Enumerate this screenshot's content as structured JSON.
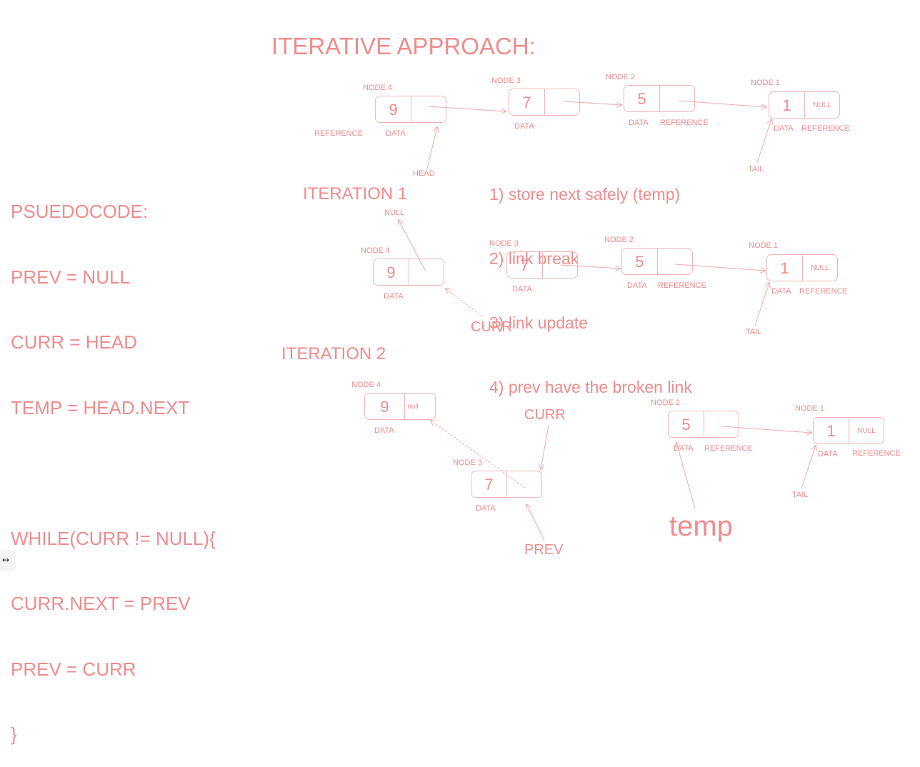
{
  "title": "ITERATIVE APPROACH:",
  "pseudocode": {
    "lines": [
      "PSUEDOCODE:",
      "PREV = NULL",
      "CURR = HEAD",
      "TEMP = HEAD.NEXT",
      "",
      "WHILE(CURR != NULL){",
      "CURR.NEXT = PREV",
      "PREV = CURR",
      "}"
    ]
  },
  "steps": [
    "1) store next safely (temp)",
    "2) link break",
    "3) link update",
    "4) prev have the broken link"
  ],
  "diagram1": {
    "node4": {
      "name": "NODE 4",
      "value": "9",
      "ref": "",
      "labels": [
        "REFERENCE",
        "DATA"
      ]
    },
    "node3": {
      "name": "NODE 3",
      "value": "7",
      "ref": "",
      "label": "DATA"
    },
    "node2": {
      "name": "NODE 2",
      "value": "5",
      "ref": "",
      "labels": [
        "DATA",
        "REFERENCE"
      ]
    },
    "node1": {
      "name": "NODE 1",
      "value": "1",
      "ref": "NULL",
      "labels": [
        "DATA",
        "REFERENCE"
      ]
    },
    "head": "HEAD",
    "tail": "TAIL"
  },
  "iteration1": {
    "label": "ITERATION 1",
    "null_label": "NULL",
    "node4": {
      "name": "NODE 4",
      "value": "9",
      "ref": "",
      "label": "DATA"
    },
    "node3": {
      "name": "NODE 3",
      "value": "7",
      "ref": "",
      "label": "DATA"
    },
    "node2": {
      "name": "NODE 2",
      "value": "5",
      "ref": "",
      "labels": [
        "DATA",
        "REFERENCE"
      ]
    },
    "node1": {
      "name": "NODE 1",
      "value": "1",
      "ref": "NULL",
      "labels": [
        "DATA",
        "REFERENCE"
      ]
    },
    "curr": "CURR",
    "tail": "TAIL"
  },
  "iteration2": {
    "label": "ITERATION 2",
    "node4": {
      "name": "NODE 4",
      "value": "9",
      "ref": "null",
      "label": "DATA"
    },
    "node3": {
      "name": "NODE 3",
      "value": "7",
      "ref": "",
      "label": "DATA"
    },
    "node2": {
      "name": "NODE 2",
      "value": "5",
      "ref": "",
      "labels": [
        "DATA",
        "REFERENCE"
      ]
    },
    "node1": {
      "name": "NODE 1",
      "value": "1",
      "ref": "NULL",
      "labels": [
        "DATA",
        "REFERENCE"
      ]
    },
    "curr": "CURR",
    "prev": "PREV",
    "temp": "temp",
    "tail": "TAIL"
  },
  "corner_icon": "collapse-arrow-icon",
  "colors": {
    "ink": "#f08c8c",
    "node_border": "#f3b6b6"
  }
}
